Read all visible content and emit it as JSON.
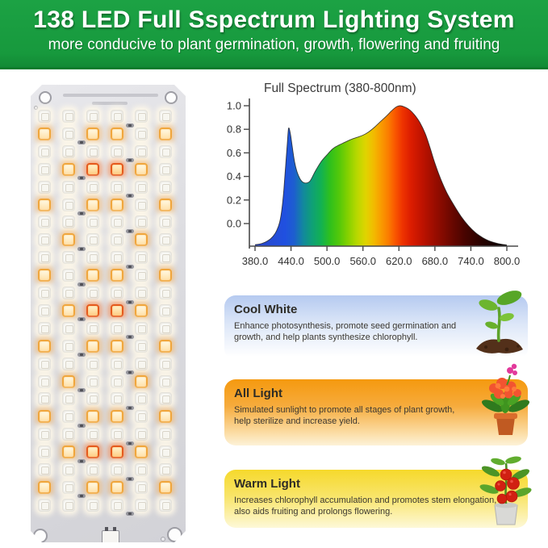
{
  "header": {
    "title": "138 LED Full Sspectrum Lighting System",
    "subtitle": "more conducive to plant germination, growth, flowering and fruiting",
    "bg_color": "#17993d",
    "text_color": "#ffffff"
  },
  "panel": {
    "name": "138 LED grow light board",
    "columns": 6,
    "row_count": 23,
    "total_leds": 138,
    "led_types": {
      "W": "cool-white-led",
      "O": "warm-orange-led",
      "R": "deep-red-led"
    },
    "led_rows": [
      "WWWWWW",
      "OWOOWO",
      "WWWWWW",
      "WORROW",
      "WWWWWW",
      "OWOOWO",
      "WWWWWW",
      "WOWWOW",
      "WWWWWW",
      "OWOOWO",
      "WWWWWW",
      "WORROW",
      "WWWWWW",
      "OWOOWO",
      "WWWWWW",
      "WOWWOW",
      "WWWWWW",
      "OWOOWO",
      "WWWWWW",
      "WORROW",
      "WWWWWW",
      "OWOOWO",
      "WWWWWW"
    ],
    "resistor_count": 23,
    "screw_hole_count": 4
  },
  "chart_data": {
    "type": "area",
    "title": "Full Spectrum (380-800nm)",
    "xlabel": "",
    "ylabel": "",
    "xlim": [
      380,
      800
    ],
    "ylim": [
      0,
      1
    ],
    "grid": false,
    "x_tick_labels": [
      "380.0",
      "440.0",
      "500.0",
      "560.0",
      "620.0",
      "680.0",
      "740.0",
      "800.0"
    ],
    "y_tick_labels": [
      "1.0",
      "0.8",
      "0.6",
      "0.4",
      "0.2",
      "0.0"
    ],
    "series": [
      {
        "name": "relative spectral intensity",
        "x": [
          380,
          392,
          402,
          410,
          416,
          421,
          425,
          428,
          431,
          434,
          436,
          439,
          442,
          446,
          450,
          455,
          460,
          466,
          472,
          480,
          490,
          500,
          510,
          520,
          530,
          540,
          550,
          560,
          570,
          580,
          590,
          600,
          608,
          615,
          622,
          630,
          638,
          646,
          655,
          664,
          672,
          680,
          690,
          700,
          712,
          724,
          736,
          748,
          760,
          772,
          786,
          800
        ],
        "y": [
          0.01,
          0.02,
          0.04,
          0.07,
          0.11,
          0.17,
          0.27,
          0.4,
          0.57,
          0.74,
          0.84,
          0.8,
          0.71,
          0.6,
          0.53,
          0.48,
          0.455,
          0.45,
          0.465,
          0.53,
          0.6,
          0.65,
          0.695,
          0.72,
          0.74,
          0.76,
          0.775,
          0.79,
          0.815,
          0.85,
          0.89,
          0.93,
          0.965,
          0.99,
          1.0,
          0.99,
          0.97,
          0.935,
          0.88,
          0.8,
          0.7,
          0.59,
          0.475,
          0.38,
          0.29,
          0.21,
          0.145,
          0.095,
          0.06,
          0.035,
          0.018,
          0.008
        ]
      }
    ],
    "gradient_stops": [
      [
        0.0,
        "#2b47c8"
      ],
      [
        0.119,
        "#2050e0"
      ],
      [
        0.155,
        "#1d5ecf"
      ],
      [
        0.19,
        "#12879f"
      ],
      [
        0.226,
        "#0fa077"
      ],
      [
        0.262,
        "#12b153"
      ],
      [
        0.298,
        "#2fc01c"
      ],
      [
        0.333,
        "#52c80a"
      ],
      [
        0.369,
        "#85d100"
      ],
      [
        0.405,
        "#b8d800"
      ],
      [
        0.44,
        "#e0d400"
      ],
      [
        0.471,
        "#f2bb00"
      ],
      [
        0.5,
        "#f99c00"
      ],
      [
        0.529,
        "#fb7d00"
      ],
      [
        0.557,
        "#f95600"
      ],
      [
        0.586,
        "#ee3300"
      ],
      [
        0.619,
        "#dc1d00"
      ],
      [
        0.667,
        "#bc1200"
      ],
      [
        0.714,
        "#9a0d00"
      ],
      [
        0.774,
        "#6f0800"
      ],
      [
        0.833,
        "#480400"
      ],
      [
        0.905,
        "#250200"
      ],
      [
        1.0,
        "#070000"
      ]
    ]
  },
  "cards": [
    {
      "title": "Cool White",
      "body": "Enhance photosynthesis, promote seed germination and growth, and help plants synthesize chlorophyll.",
      "top_color": "#b5caf0",
      "bottom_color": "#ffffff",
      "icon": "seedling-icon"
    },
    {
      "title": "All Light",
      "body": "Simulated sunlight to promote all stages of plant growth, help sterilize and increase yield.",
      "top_color": "#f5990f",
      "bottom_color": "#fdf2d8",
      "icon": "flowering-plant-icon"
    },
    {
      "title": "Warm Light",
      "body": "Increases chlorophyll accumulation and promotes stem elongation, also aids fruiting and prolongs flowering.",
      "top_color": "#f6d92c",
      "bottom_color": "#fdf8d8",
      "icon": "tomato-plant-icon"
    }
  ]
}
